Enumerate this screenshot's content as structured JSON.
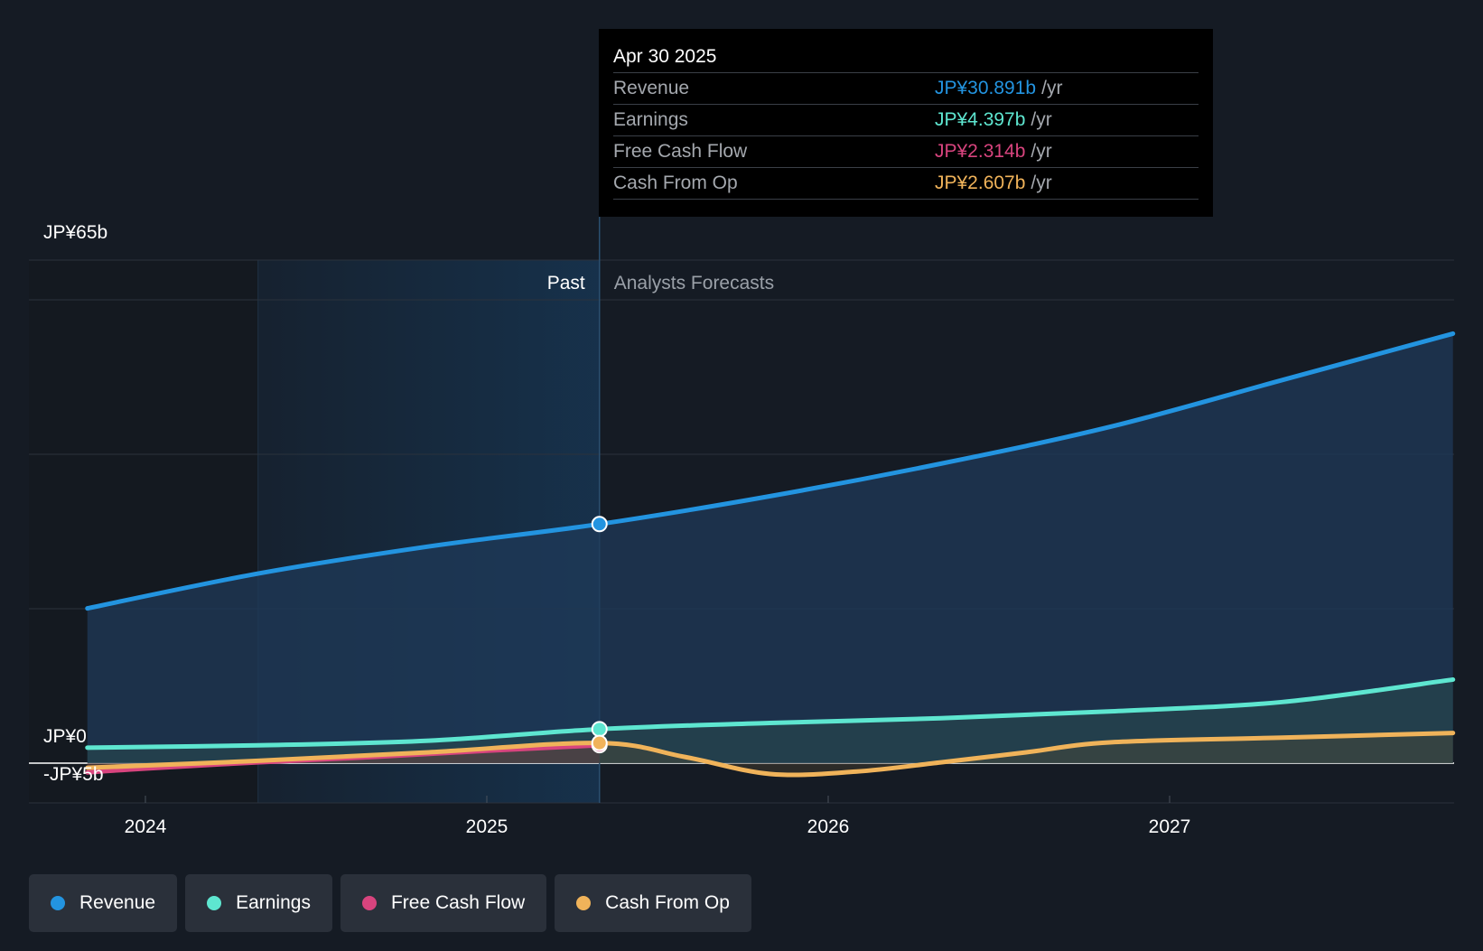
{
  "colors": {
    "background": "#151b24",
    "revenue": "#2394e0",
    "earnings": "#5ee6d0",
    "free_cash_flow": "#d8447e",
    "cash_from_op": "#f0b35a",
    "past_shade": "#173552"
  },
  "tooltip": {
    "date": "Apr 30 2025",
    "rows": [
      {
        "label": "Revenue",
        "value": "JP¥30.891b",
        "unit": "/yr",
        "color": "#2394e0"
      },
      {
        "label": "Earnings",
        "value": "JP¥4.397b",
        "unit": "/yr",
        "color": "#5ee6d0"
      },
      {
        "label": "Free Cash Flow",
        "value": "JP¥2.314b",
        "unit": "/yr",
        "color": "#d8447e"
      },
      {
        "label": "Cash From Op",
        "value": "JP¥2.607b",
        "unit": "/yr",
        "color": "#f0b35a"
      }
    ]
  },
  "legend": [
    {
      "label": "Revenue",
      "color": "#2394e0"
    },
    {
      "label": "Earnings",
      "color": "#5ee6d0"
    },
    {
      "label": "Free Cash Flow",
      "color": "#d8447e"
    },
    {
      "label": "Cash From Op",
      "color": "#f0b35a"
    }
  ],
  "chart_data": {
    "type": "area",
    "title": "",
    "xlabel": "",
    "ylabel": "",
    "ylim": [
      -5,
      65
    ],
    "y_tick_labels": [
      "JP¥65b",
      "JP¥0",
      "-JP¥5b"
    ],
    "y_ticks": [
      65,
      0,
      -5
    ],
    "x_ticks": [
      2024,
      2025,
      2026,
      2027
    ],
    "x_tick_labels": [
      "2024",
      "2025",
      "2026",
      "2027"
    ],
    "xlim": [
      2023.65,
      2027.83
    ],
    "past_start": 2024.33,
    "divider": 2025.33,
    "divider_labels": {
      "past": "Past",
      "forecast": "Analysts Forecasts"
    },
    "series": [
      {
        "name": "Revenue",
        "key": "revenue",
        "x": [
          2023.83,
          2024.33,
          2024.83,
          2025.33,
          2025.83,
          2026.33,
          2026.83,
          2027.33,
          2027.83
        ],
        "values": [
          20.0,
          24.5,
          28.0,
          30.891,
          34.5,
          38.7,
          43.5,
          49.5,
          55.5
        ]
      },
      {
        "name": "Earnings",
        "key": "earnings",
        "x": [
          2023.83,
          2024.33,
          2024.83,
          2025.33,
          2025.83,
          2026.33,
          2026.83,
          2027.33,
          2027.83
        ],
        "values": [
          2.0,
          2.3,
          2.9,
          4.397,
          5.2,
          5.8,
          6.7,
          7.9,
          10.8
        ]
      },
      {
        "name": "Free Cash Flow",
        "key": "free_cash_flow",
        "x": [
          2023.83,
          2024.0,
          2024.33,
          2024.67,
          2025.0,
          2025.33
        ],
        "values": [
          -1.2,
          -0.7,
          0.1,
          0.8,
          1.6,
          2.314
        ]
      },
      {
        "name": "Cash From Op",
        "key": "cash_from_op",
        "x": [
          2023.83,
          2024.33,
          2024.83,
          2025.33,
          2025.58,
          2025.83,
          2026.08,
          2026.33,
          2026.58,
          2026.83,
          2027.33,
          2027.83
        ],
        "values": [
          -0.6,
          0.3,
          1.4,
          2.607,
          0.8,
          -1.4,
          -1.1,
          0.1,
          1.4,
          2.7,
          3.3,
          3.9
        ]
      }
    ],
    "highlight": {
      "x": 2025.33,
      "label": "Apr 30 2025"
    }
  }
}
